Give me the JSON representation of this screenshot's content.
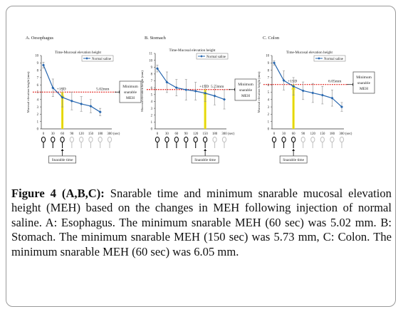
{
  "figure": {
    "caption_label": "Figure 4 (A,B,C):",
    "caption_text": "Snarable time and minimum snarable mucosal elevation height (MEH) based on the changes in MEH following injection of normal saline. A: Esophagus. The minimum snarable MEH (60 sec) was 5.02 mm. B: Stomach. The minimum snarable MEH (150 sec) was 5.73 mm, C: Colon. The minimum snarable MEH (60 sec) was 6.05 mm."
  },
  "colors": {
    "series": "#2565ae",
    "threshold": "#e0140f",
    "snarable": "#f2e61c",
    "axis": "#333333",
    "error": "#8a8a8a"
  },
  "chart_data": [
    {
      "type": "line",
      "panel_title": "A. Oesophagus",
      "title": "Time-Mucosal elevation height",
      "ylabel": "Mucosal elevation height (mm)",
      "xlabel": "(sec)",
      "legend": "Normal saline",
      "x": [
        0,
        30,
        60,
        90,
        120,
        150,
        180
      ],
      "x_ticks": [
        "0",
        "30",
        "60",
        "90",
        "120",
        "150",
        "180",
        "300"
      ],
      "x_tick_values": [
        0,
        30,
        60,
        90,
        120,
        150,
        180,
        300
      ],
      "x_extra_label": "(sec)",
      "y": [
        8.7,
        5.6,
        4.3,
        3.8,
        3.4,
        3.1,
        2.3
      ],
      "ylim": [
        0,
        10
      ],
      "y_ticks": [
        0,
        1,
        2,
        3,
        4,
        5,
        6,
        7,
        8,
        9,
        10
      ],
      "error": [
        0.4,
        1.2,
        1.3,
        1.2,
        1.0,
        0.9,
        0.5
      ],
      "threshold_label": "+1SD",
      "threshold_value_label": "5.02mm",
      "threshold_y": 5.02,
      "snarable_x": 60,
      "side_note": [
        "Minimum",
        "snarable",
        "MEH"
      ],
      "snarable_label": "Snarable time"
    },
    {
      "type": "line",
      "panel_title": "B. Stomach",
      "title": "Time-Mucosal elevation height",
      "ylabel": "Mucosal elevation height (mm)",
      "xlabel": "(sec)",
      "legend": "Normal saline",
      "x": [
        0,
        30,
        60,
        90,
        120,
        150,
        180,
        300
      ],
      "x_ticks": [
        "0",
        "30",
        "60",
        "90",
        "120",
        "150",
        "180",
        "300"
      ],
      "x_tick_values": [
        0,
        30,
        60,
        90,
        120,
        150,
        180,
        300
      ],
      "x_extra_label": "(sec)",
      "y": [
        8.8,
        6.8,
        6.0,
        5.7,
        5.5,
        5.2,
        4.8,
        4.3
      ],
      "ylim": [
        0,
        11
      ],
      "y_ticks": [
        0,
        1,
        2,
        3,
        4,
        5,
        6,
        7,
        8,
        9,
        10,
        11
      ],
      "error": [
        0.5,
        1.5,
        1.2,
        1.5,
        1.3,
        1.2,
        1.3,
        1.4
      ],
      "threshold_label": "+1SD",
      "threshold_value_label": "5.73mm",
      "threshold_y": 5.73,
      "snarable_x": 150,
      "side_note": [
        "Minimum",
        "snarable",
        "MEH"
      ],
      "snarable_label": "Snarable time"
    },
    {
      "type": "line",
      "panel_title": "C. Colon",
      "title": "Time-Mucosal elevation height",
      "ylabel": "Mucosal elevation height (mm)",
      "xlabel": "(sec)",
      "legend": "Normal saline",
      "x": [
        0,
        30,
        60,
        90,
        120,
        150,
        180,
        300
      ],
      "x_ticks": [
        "0",
        "30",
        "60",
        "90",
        "120",
        "150",
        "180",
        "300"
      ],
      "x_tick_values": [
        0,
        30,
        60,
        90,
        120,
        150,
        180,
        300
      ],
      "x_extra_label": "(sec)",
      "y": [
        9.0,
        6.6,
        5.8,
        5.2,
        4.9,
        4.6,
        4.2,
        3.0
      ],
      "ylim": [
        0,
        10
      ],
      "y_ticks": [
        0,
        1,
        2,
        3,
        4,
        5,
        6,
        7,
        8,
        9,
        10
      ],
      "error": [
        0.3,
        1.3,
        1.2,
        1.2,
        1.3,
        1.2,
        1.1,
        0.6
      ],
      "threshold_label": "+1SD",
      "threshold_value_label": "6.05mm",
      "threshold_y": 6.05,
      "snarable_x": 60,
      "side_note": [
        "Minimum",
        "snarable",
        "MEH"
      ],
      "snarable_label": "Snarable time"
    }
  ]
}
